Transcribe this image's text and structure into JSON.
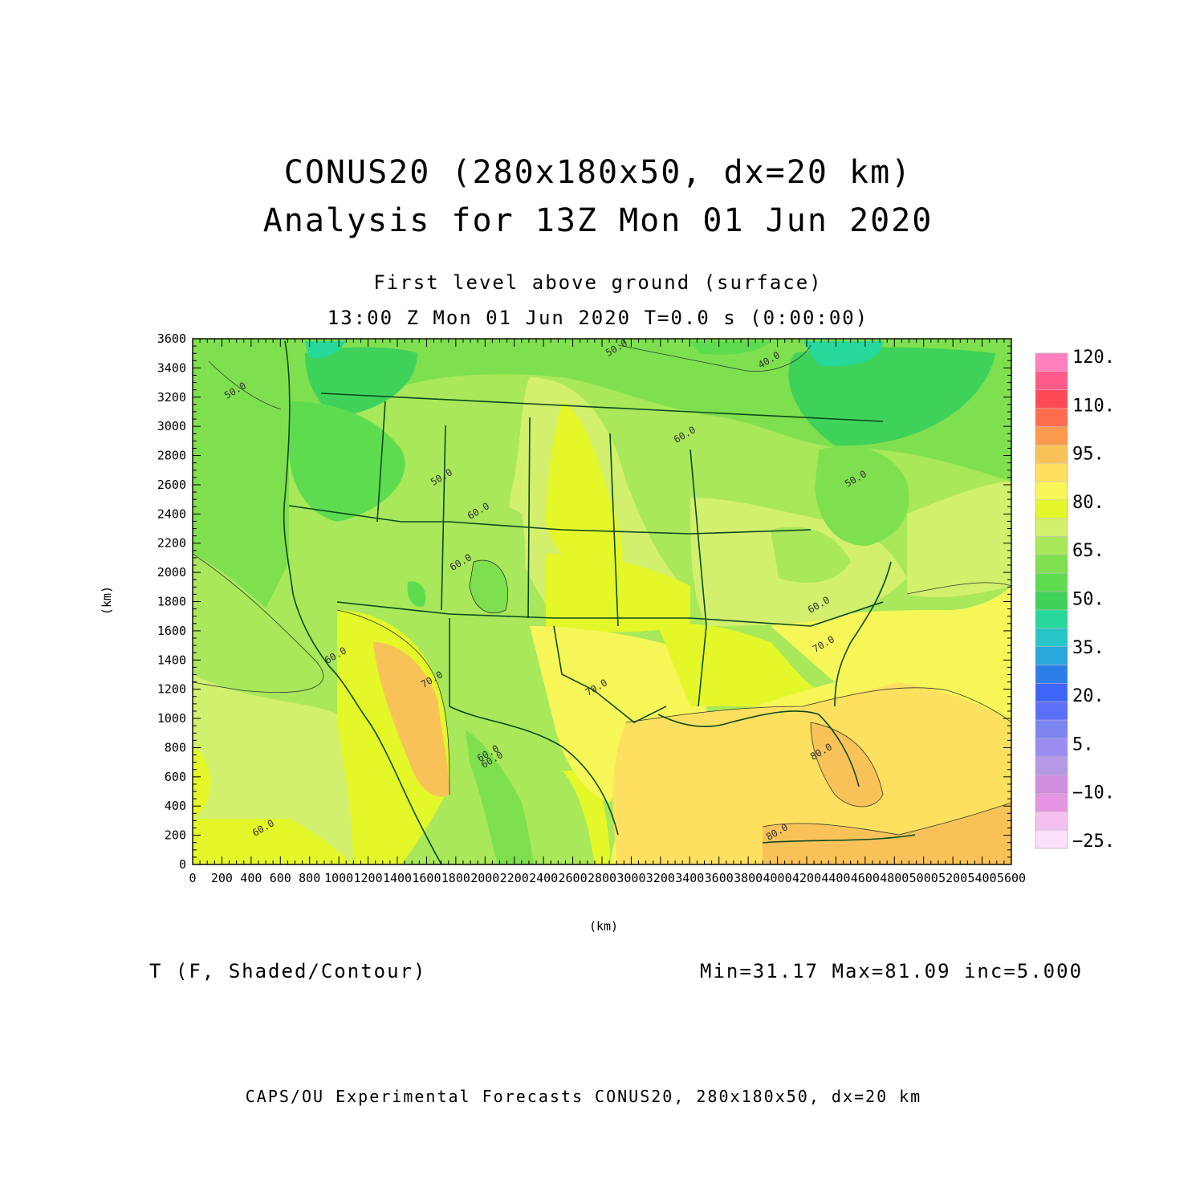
{
  "header": {
    "title_line1": "CONUS20 (280x180x50, dx=20 km)",
    "title_line2": "Analysis for 13Z Mon 01 Jun 2020",
    "subtitle_line1": "First level above ground (surface)",
    "subtitle_line2": "13:00 Z Mon 01 Jun 2020    T=0.0 s (0:00:00)"
  },
  "plot": {
    "x_axis_label": "(km)",
    "y_axis_label": "(km)",
    "x_ticks": [
      "0",
      "200",
      "400",
      "600",
      "800",
      "1000",
      "1200",
      "1400",
      "1600",
      "1800",
      "2000",
      "2200",
      "2400",
      "2600",
      "2800",
      "3000",
      "3200",
      "3400",
      "3600",
      "3800",
      "4000",
      "4200",
      "4400",
      "4600",
      "4800",
      "5000",
      "5200",
      "5400",
      "5600"
    ],
    "y_ticks": [
      "0",
      "200",
      "400",
      "600",
      "800",
      "1000",
      "1200",
      "1400",
      "1600",
      "1800",
      "2000",
      "2200",
      "2400",
      "2600",
      "2800",
      "3000",
      "3200",
      "3400",
      "3600"
    ],
    "x_range": [
      0,
      5600
    ],
    "y_range": [
      0,
      3600
    ],
    "contour_labels": [
      "50.0",
      "50.0",
      "40.0",
      "50.0",
      "50.0",
      "60.0",
      "60.0",
      "60.0",
      "60.0",
      "60.0",
      "70.0",
      "70.0",
      "60.0",
      "70.0",
      "80.0",
      "80.0",
      "60.0",
      "60.0"
    ]
  },
  "colorbar": {
    "labels": [
      "120.",
      "110.",
      "95.",
      "80.",
      "65.",
      "50.",
      "35.",
      "20.",
      "5.",
      "−10.",
      "−25."
    ],
    "colors": [
      "#ff7fbf",
      "#ff5a8a",
      "#ff4a55",
      "#fd6e4e",
      "#fb9a4d",
      "#f9c259",
      "#fde060",
      "#f6f658",
      "#e4f728",
      "#d2ef6d",
      "#a8e85a",
      "#7fe04f",
      "#5edc4f",
      "#3fd25a",
      "#26d99a",
      "#28c5c8",
      "#29a6db",
      "#2c7fe8",
      "#3c64f6",
      "#5a6ff5",
      "#7c84f0",
      "#9a8cf0",
      "#b59ae6",
      "#cf8fe0",
      "#e494e0",
      "#f3c0f0",
      "#fae0fa"
    ]
  },
  "footer": {
    "variable_label": "T (F, Shaded/Contour)",
    "stats": "Min=31.17  Max=81.09  inc=5.000",
    "credit": "CAPS/OU Experimental Forecasts  CONUS20, 280x180x50, dx=20 km"
  }
}
